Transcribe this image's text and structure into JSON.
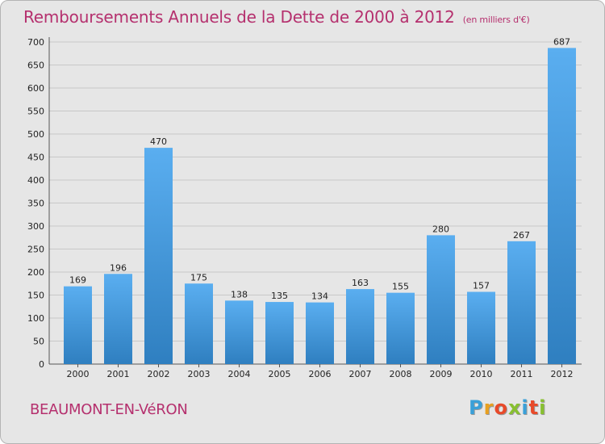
{
  "title": "Remboursements Annuels de la Dette de 2000 à 2012",
  "subtitle": "(en milliers d'€)",
  "city": "BEAUMONT-EN-VéRON",
  "logo": {
    "letters": [
      "P",
      "r",
      "o",
      "x",
      "i",
      "t",
      "i"
    ],
    "colors": [
      "#3aa0d8",
      "#e8a020",
      "#e84a2a",
      "#88c030",
      "#3aa0d8",
      "#e84a2a",
      "#88c030"
    ]
  },
  "colors": {
    "bar_top": "#5aaef0",
    "bar_bottom": "#2f7fc0",
    "title": "#b5306e",
    "grid": "#c8c8c8",
    "plot_background": "#e6e6e6"
  },
  "chart_data": {
    "type": "bar",
    "categories": [
      "2000",
      "2001",
      "2002",
      "2003",
      "2004",
      "2005",
      "2006",
      "2007",
      "2008",
      "2009",
      "2010",
      "2011",
      "2012"
    ],
    "values": [
      169,
      196,
      470,
      175,
      138,
      135,
      134,
      163,
      155,
      280,
      157,
      267,
      687
    ],
    "ylim": [
      0,
      700
    ],
    "yticks": [
      0,
      50,
      100,
      150,
      200,
      250,
      300,
      350,
      400,
      450,
      500,
      550,
      600,
      650,
      700
    ],
    "grid": true,
    "data_labels": true
  }
}
